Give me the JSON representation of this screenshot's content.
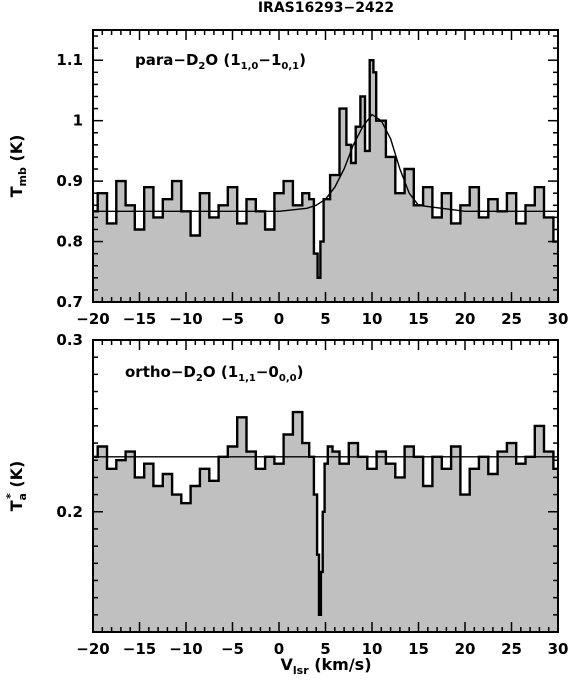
{
  "figure": {
    "title": "IRAS16293−2422",
    "xlabel": "V",
    "xlabel_sub": "lsr",
    "xlabel_unit": " (km/s)"
  },
  "chart_data": [
    {
      "type": "line",
      "panel": "top",
      "annotation": {
        "prefix": "para−D",
        "sub1": "2",
        "mid": "O (1",
        "sub2": "1,0",
        "dash": "−1",
        "sub3": "0,1",
        "suffix": ")"
      },
      "ylabel": {
        "main": "T",
        "sub": "mb",
        "unit": " (K)"
      },
      "xlim": [
        -20,
        30
      ],
      "ylim": [
        0.7,
        1.15
      ],
      "x_ticks": [
        -20,
        -15,
        -10,
        -5,
        0,
        5,
        10,
        15,
        20,
        25,
        30
      ],
      "x_tick_labels": [
        "−20",
        "−15",
        "−10",
        "−5",
        "0",
        "5",
        "10",
        "15",
        "20",
        "25",
        "30"
      ],
      "y_ticks": [
        0.7,
        0.8,
        0.9,
        1.0,
        1.1
      ],
      "y_tick_labels": [
        "0.7",
        "0.8",
        "0.9",
        "1",
        "1.1"
      ],
      "fill_color": "#c0c0c0",
      "baseline": 0.85,
      "series": [
        {
          "style": "spectrum",
          "x": [
            -20.0,
            -19.0,
            -18.0,
            -17.0,
            -16.0,
            -15.0,
            -14.0,
            -13.0,
            -12.0,
            -11.0,
            -10.0,
            -9.0,
            -8.0,
            -7.0,
            -6.0,
            -5.0,
            -4.0,
            -3.0,
            -2.0,
            -1.0,
            0.0,
            1.0,
            2.0,
            3.0,
            3.5,
            4.0,
            4.3,
            4.6,
            5.0,
            6.0,
            7.0,
            7.5,
            8.0,
            8.5,
            9.0,
            9.5,
            10.0,
            10.3,
            10.6,
            11.0,
            12.0,
            13.0,
            14.0,
            15.0,
            16.0,
            17.0,
            18.0,
            19.0,
            20.0,
            21.0,
            22.0,
            23.0,
            24.0,
            25.0,
            26.0,
            27.0,
            28.0,
            29.0,
            30.0
          ],
          "y": [
            0.85,
            0.88,
            0.83,
            0.9,
            0.86,
            0.82,
            0.89,
            0.84,
            0.87,
            0.9,
            0.85,
            0.81,
            0.88,
            0.84,
            0.86,
            0.89,
            0.83,
            0.87,
            0.85,
            0.82,
            0.88,
            0.9,
            0.86,
            0.88,
            0.87,
            0.78,
            0.74,
            0.8,
            0.87,
            0.91,
            1.02,
            0.96,
            0.93,
            0.99,
            1.04,
            0.95,
            1.1,
            1.08,
            1.0,
            1.0,
            0.94,
            0.88,
            0.92,
            0.86,
            0.89,
            0.84,
            0.88,
            0.83,
            0.86,
            0.89,
            0.84,
            0.87,
            0.85,
            0.88,
            0.83,
            0.86,
            0.89,
            0.84,
            0.8
          ]
        },
        {
          "style": "fit",
          "x": [
            -20,
            -10,
            0,
            3,
            4,
            5,
            6,
            7,
            8,
            9,
            10,
            11,
            12,
            13,
            14,
            15,
            20,
            30
          ],
          "y": [
            0.85,
            0.85,
            0.85,
            0.855,
            0.86,
            0.87,
            0.89,
            0.92,
            0.96,
            0.99,
            1.01,
            1.0,
            0.97,
            0.92,
            0.88,
            0.86,
            0.85,
            0.85
          ]
        }
      ]
    },
    {
      "type": "line",
      "panel": "bottom",
      "annotation": {
        "prefix": "ortho−D",
        "sub1": "2",
        "mid": "O (1",
        "sub2": "1,1",
        "dash": "−0",
        "sub3": "0,0",
        "suffix": ")"
      },
      "ylabel": {
        "main": "T",
        "sub": "a",
        "sup": "*",
        "unit": " (K)"
      },
      "xlim": [
        -20,
        30
      ],
      "ylim": [
        0.13,
        0.3
      ],
      "x_ticks": [
        -20,
        -15,
        -10,
        -5,
        0,
        5,
        10,
        15,
        20,
        25,
        30
      ],
      "x_tick_labels": [
        "−20",
        "−15",
        "−10",
        "−5",
        "0",
        "5",
        "10",
        "15",
        "20",
        "25",
        "30"
      ],
      "y_ticks": [
        0.2,
        0.3
      ],
      "y_tick_labels": [
        "0.2",
        "0.3"
      ],
      "fill_color": "#c0c0c0",
      "baseline": 0.232,
      "series": [
        {
          "style": "spectrum",
          "x": [
            -20.0,
            -19.0,
            -18.0,
            -17.0,
            -16.0,
            -15.0,
            -14.0,
            -13.0,
            -12.0,
            -11.0,
            -10.0,
            -9.0,
            -8.0,
            -7.0,
            -6.0,
            -5.0,
            -4.0,
            -3.0,
            -2.0,
            -1.0,
            0.0,
            1.0,
            2.0,
            3.0,
            3.5,
            4.0,
            4.2,
            4.4,
            4.6,
            4.8,
            5.0,
            5.5,
            6.0,
            7.0,
            8.0,
            9.0,
            10.0,
            11.0,
            12.0,
            13.0,
            14.0,
            15.0,
            16.0,
            17.0,
            18.0,
            19.0,
            20.0,
            21.0,
            22.0,
            23.0,
            24.0,
            25.0,
            26.0,
            27.0,
            28.0,
            29.0,
            30.0
          ],
          "y": [
            0.232,
            0.238,
            0.225,
            0.23,
            0.235,
            0.22,
            0.228,
            0.215,
            0.222,
            0.21,
            0.205,
            0.215,
            0.225,
            0.218,
            0.232,
            0.238,
            0.255,
            0.235,
            0.225,
            0.232,
            0.228,
            0.245,
            0.258,
            0.24,
            0.232,
            0.21,
            0.175,
            0.14,
            0.165,
            0.2,
            0.228,
            0.238,
            0.235,
            0.228,
            0.24,
            0.232,
            0.225,
            0.235,
            0.228,
            0.22,
            0.238,
            0.232,
            0.215,
            0.232,
            0.225,
            0.238,
            0.21,
            0.225,
            0.232,
            0.222,
            0.235,
            0.24,
            0.228,
            0.232,
            0.25,
            0.235,
            0.225
          ]
        },
        {
          "style": "fit",
          "x": [
            -20,
            30
          ],
          "y": [
            0.232,
            0.232
          ]
        }
      ]
    }
  ]
}
